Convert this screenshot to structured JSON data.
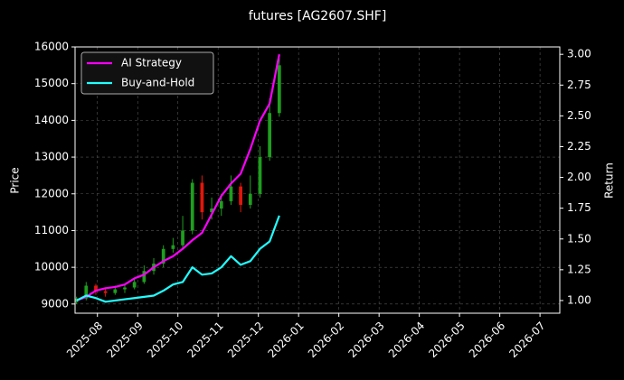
{
  "chart_data": {
    "type": "candlestick",
    "title": "futures [AG2607.SHF]",
    "ylabel": "Price",
    "y2label": "Return",
    "x": [
      2025.54,
      2025.56,
      2025.58,
      2025.6,
      2025.62,
      2025.64,
      2025.66,
      2025.68,
      2025.7,
      2025.72,
      2025.74,
      2025.76,
      2025.78,
      2025.8,
      2025.82,
      2025.84,
      2025.86,
      2025.88,
      2025.9,
      2025.92,
      2025.94,
      2025.96
    ],
    "open": [
      9050,
      9150,
      9500,
      9350,
      9300,
      9400,
      9450,
      9600,
      9900,
      10100,
      10500,
      10600,
      11000,
      12300,
      11500,
      11600,
      11800,
      12200,
      11700,
      12000,
      13000,
      14200
    ],
    "high": [
      9200,
      9600,
      9550,
      9450,
      9500,
      9550,
      9700,
      10050,
      10250,
      10600,
      10800,
      11400,
      12400,
      12500,
      11900,
      12000,
      12500,
      12300,
      12500,
      13300,
      14600,
      15700
    ],
    "low": [
      9000,
      9100,
      9250,
      9200,
      9250,
      9300,
      9400,
      9550,
      9800,
      10000,
      10400,
      10500,
      10900,
      11300,
      11300,
      11400,
      11700,
      11500,
      11600,
      11900,
      12900,
      14100
    ],
    "close": [
      9150,
      9500,
      9350,
      9300,
      9400,
      9450,
      9600,
      9900,
      10100,
      10500,
      10600,
      11000,
      12300,
      11500,
      11600,
      11800,
      12200,
      11700,
      12000,
      13000,
      14200,
      15500
    ],
    "up_color": "#1f9e1f",
    "down_color": "#e0160c",
    "series": [
      {
        "name": "AI Strategy",
        "color": "#ff00ff",
        "axis": "y2",
        "values": [
          1.0,
          1.03,
          1.08,
          1.1,
          1.11,
          1.13,
          1.18,
          1.21,
          1.27,
          1.32,
          1.36,
          1.42,
          1.49,
          1.55,
          1.7,
          1.85,
          1.95,
          2.03,
          2.23,
          2.46,
          2.6,
          3.0
        ]
      },
      {
        "name": "Buy-and-Hold",
        "color": "#22ffff",
        "axis": "y2",
        "values": [
          1.0,
          1.04,
          1.02,
          0.99,
          1.0,
          1.01,
          1.02,
          1.03,
          1.04,
          1.08,
          1.13,
          1.15,
          1.27,
          1.21,
          1.22,
          1.27,
          1.36,
          1.29,
          1.32,
          1.42,
          1.48,
          1.69
        ]
      }
    ],
    "xlim": [
      2025.537,
      2026.541
    ],
    "xticks": [
      {
        "value": 2025.5833,
        "label": "2025-08"
      },
      {
        "value": 2025.6667,
        "label": "2025-09"
      },
      {
        "value": 2025.75,
        "label": "2025-10"
      },
      {
        "value": 2025.8333,
        "label": "2025-11"
      },
      {
        "value": 2025.9167,
        "label": "2025-12"
      },
      {
        "value": 2026.0,
        "label": "2026-01"
      },
      {
        "value": 2026.0833,
        "label": "2026-02"
      },
      {
        "value": 2026.1667,
        "label": "2026-03"
      },
      {
        "value": 2026.25,
        "label": "2026-04"
      },
      {
        "value": 2026.3333,
        "label": "2026-05"
      },
      {
        "value": 2026.4167,
        "label": "2026-06"
      },
      {
        "value": 2026.5,
        "label": "2026-07"
      }
    ],
    "ylim": [
      8750,
      16000
    ],
    "yticks": [
      9000,
      10000,
      11000,
      12000,
      13000,
      14000,
      15000,
      16000
    ],
    "y2lim": [
      0.897,
      3.06
    ],
    "y2ticks": [
      {
        "value": 1.0,
        "label": "1.00"
      },
      {
        "value": 1.25,
        "label": "1.25"
      },
      {
        "value": 1.5,
        "label": "1.50"
      },
      {
        "value": 1.75,
        "label": "1.75"
      },
      {
        "value": 2.0,
        "label": "2.00"
      },
      {
        "value": 2.25,
        "label": "2.25"
      },
      {
        "value": 2.5,
        "label": "2.50"
      },
      {
        "value": 2.75,
        "label": "2.75"
      },
      {
        "value": 3.0,
        "label": "3.00"
      }
    ],
    "grid": true,
    "legend": "upper left"
  }
}
